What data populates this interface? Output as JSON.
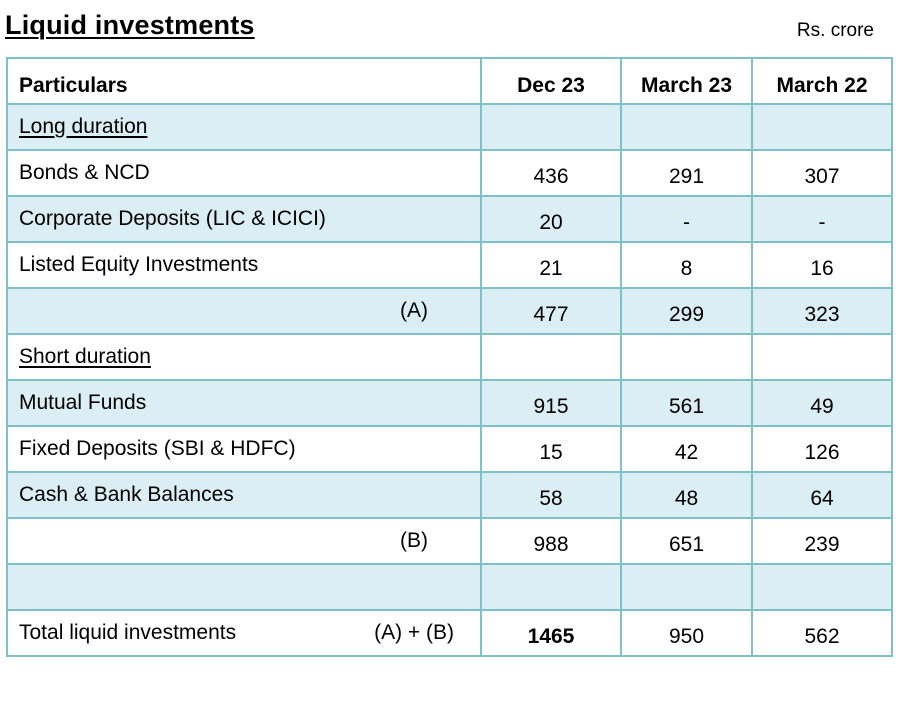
{
  "title": "Liquid investments",
  "unit": "Rs. crore",
  "headers": [
    "Particulars",
    "Dec 23",
    "March 23",
    "March 22"
  ],
  "rows": [
    {
      "label": "Long duration",
      "section": true,
      "shade": true,
      "values": [
        "",
        "",
        ""
      ]
    },
    {
      "label": "Bonds & NCD",
      "shade": false,
      "values": [
        "436",
        "291",
        "307"
      ]
    },
    {
      "label": "Corporate Deposits (LIC & ICICI)",
      "shade": true,
      "values": [
        "20",
        "-",
        "-"
      ]
    },
    {
      "label": "Listed Equity Investments",
      "shade": false,
      "values": [
        "21",
        "8",
        "16"
      ]
    },
    {
      "label": "(A)",
      "subtotal": true,
      "shade": true,
      "values": [
        "477",
        "299",
        "323"
      ]
    },
    {
      "label": "Short duration",
      "section": true,
      "shade": false,
      "values": [
        "",
        "",
        ""
      ]
    },
    {
      "label": "Mutual Funds",
      "shade": true,
      "values": [
        "915",
        "561",
        "49"
      ]
    },
    {
      "label": "Fixed Deposits (SBI & HDFC)",
      "shade": false,
      "values": [
        "15",
        "42",
        "126"
      ]
    },
    {
      "label": "Cash & Bank Balances",
      "shade": true,
      "values": [
        "58",
        "48",
        "64"
      ]
    },
    {
      "label": "(B)",
      "subtotal": true,
      "shade": false,
      "values": [
        "988",
        "651",
        "239"
      ]
    },
    {
      "label": "",
      "shade": true,
      "values": [
        "",
        "",
        ""
      ]
    }
  ],
  "total": {
    "label": "Total liquid investments",
    "formula": "(A) + (B)",
    "values": [
      "1465",
      "950",
      "562"
    ]
  }
}
